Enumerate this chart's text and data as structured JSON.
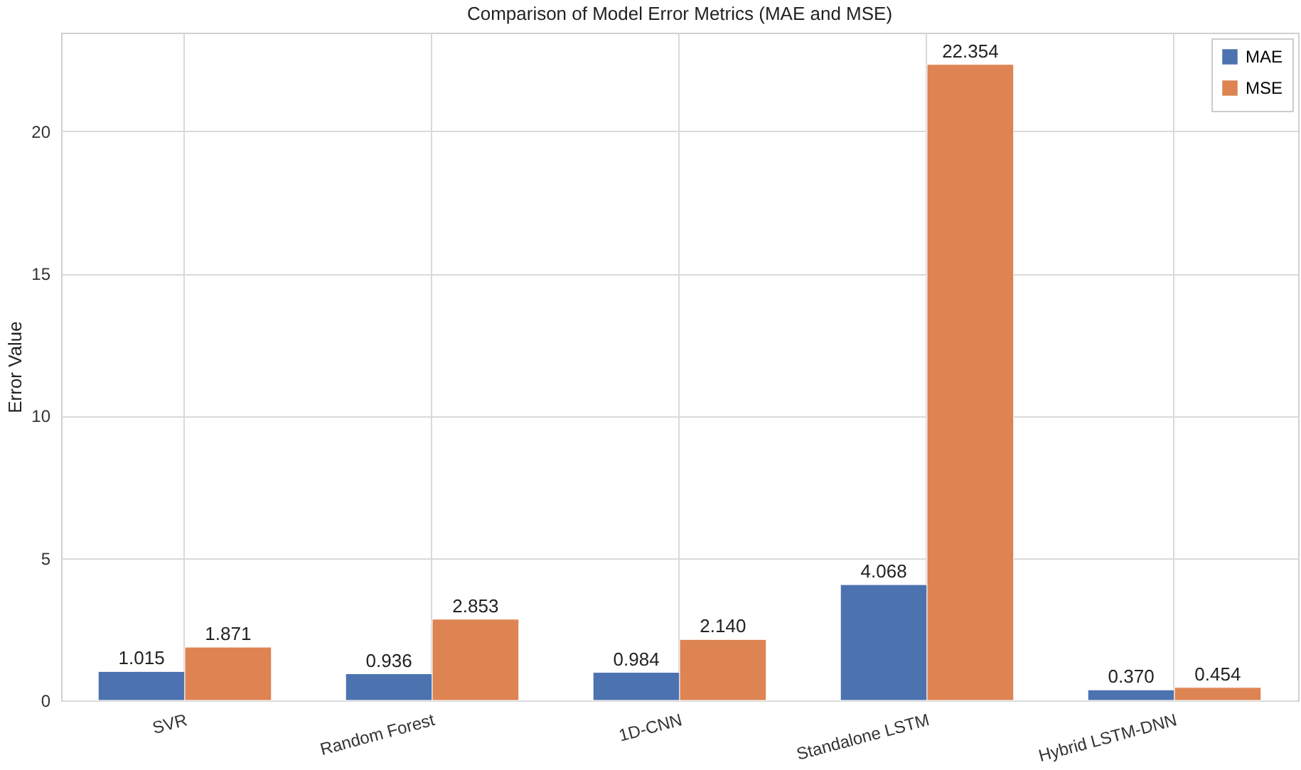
{
  "chart_data": {
    "type": "bar",
    "title": "Comparison of Model Error Metrics (MAE and MSE)",
    "ylabel": "Error Value",
    "categories": [
      "SVR",
      "Random Forest",
      "1D-CNN",
      "Standalone LSTM",
      "Hybrid LSTM-DNN"
    ],
    "series": [
      {
        "name": "MAE",
        "color": "#4c72b0",
        "values": [
          1.015,
          0.936,
          0.984,
          4.068,
          0.37
        ],
        "value_labels": [
          "1.015",
          "0.936",
          "0.984",
          "4.068",
          "0.370"
        ]
      },
      {
        "name": "MSE",
        "color": "#dd8452",
        "values": [
          1.871,
          2.853,
          2.14,
          22.354,
          0.454
        ],
        "value_labels": [
          "1.871",
          "2.853",
          "2.140",
          "22.354",
          "0.454"
        ]
      }
    ],
    "ylim": [
      0,
      23.47
    ],
    "yticks": [
      0,
      5,
      10,
      15,
      20
    ],
    "grid": true,
    "legend": "top right"
  }
}
